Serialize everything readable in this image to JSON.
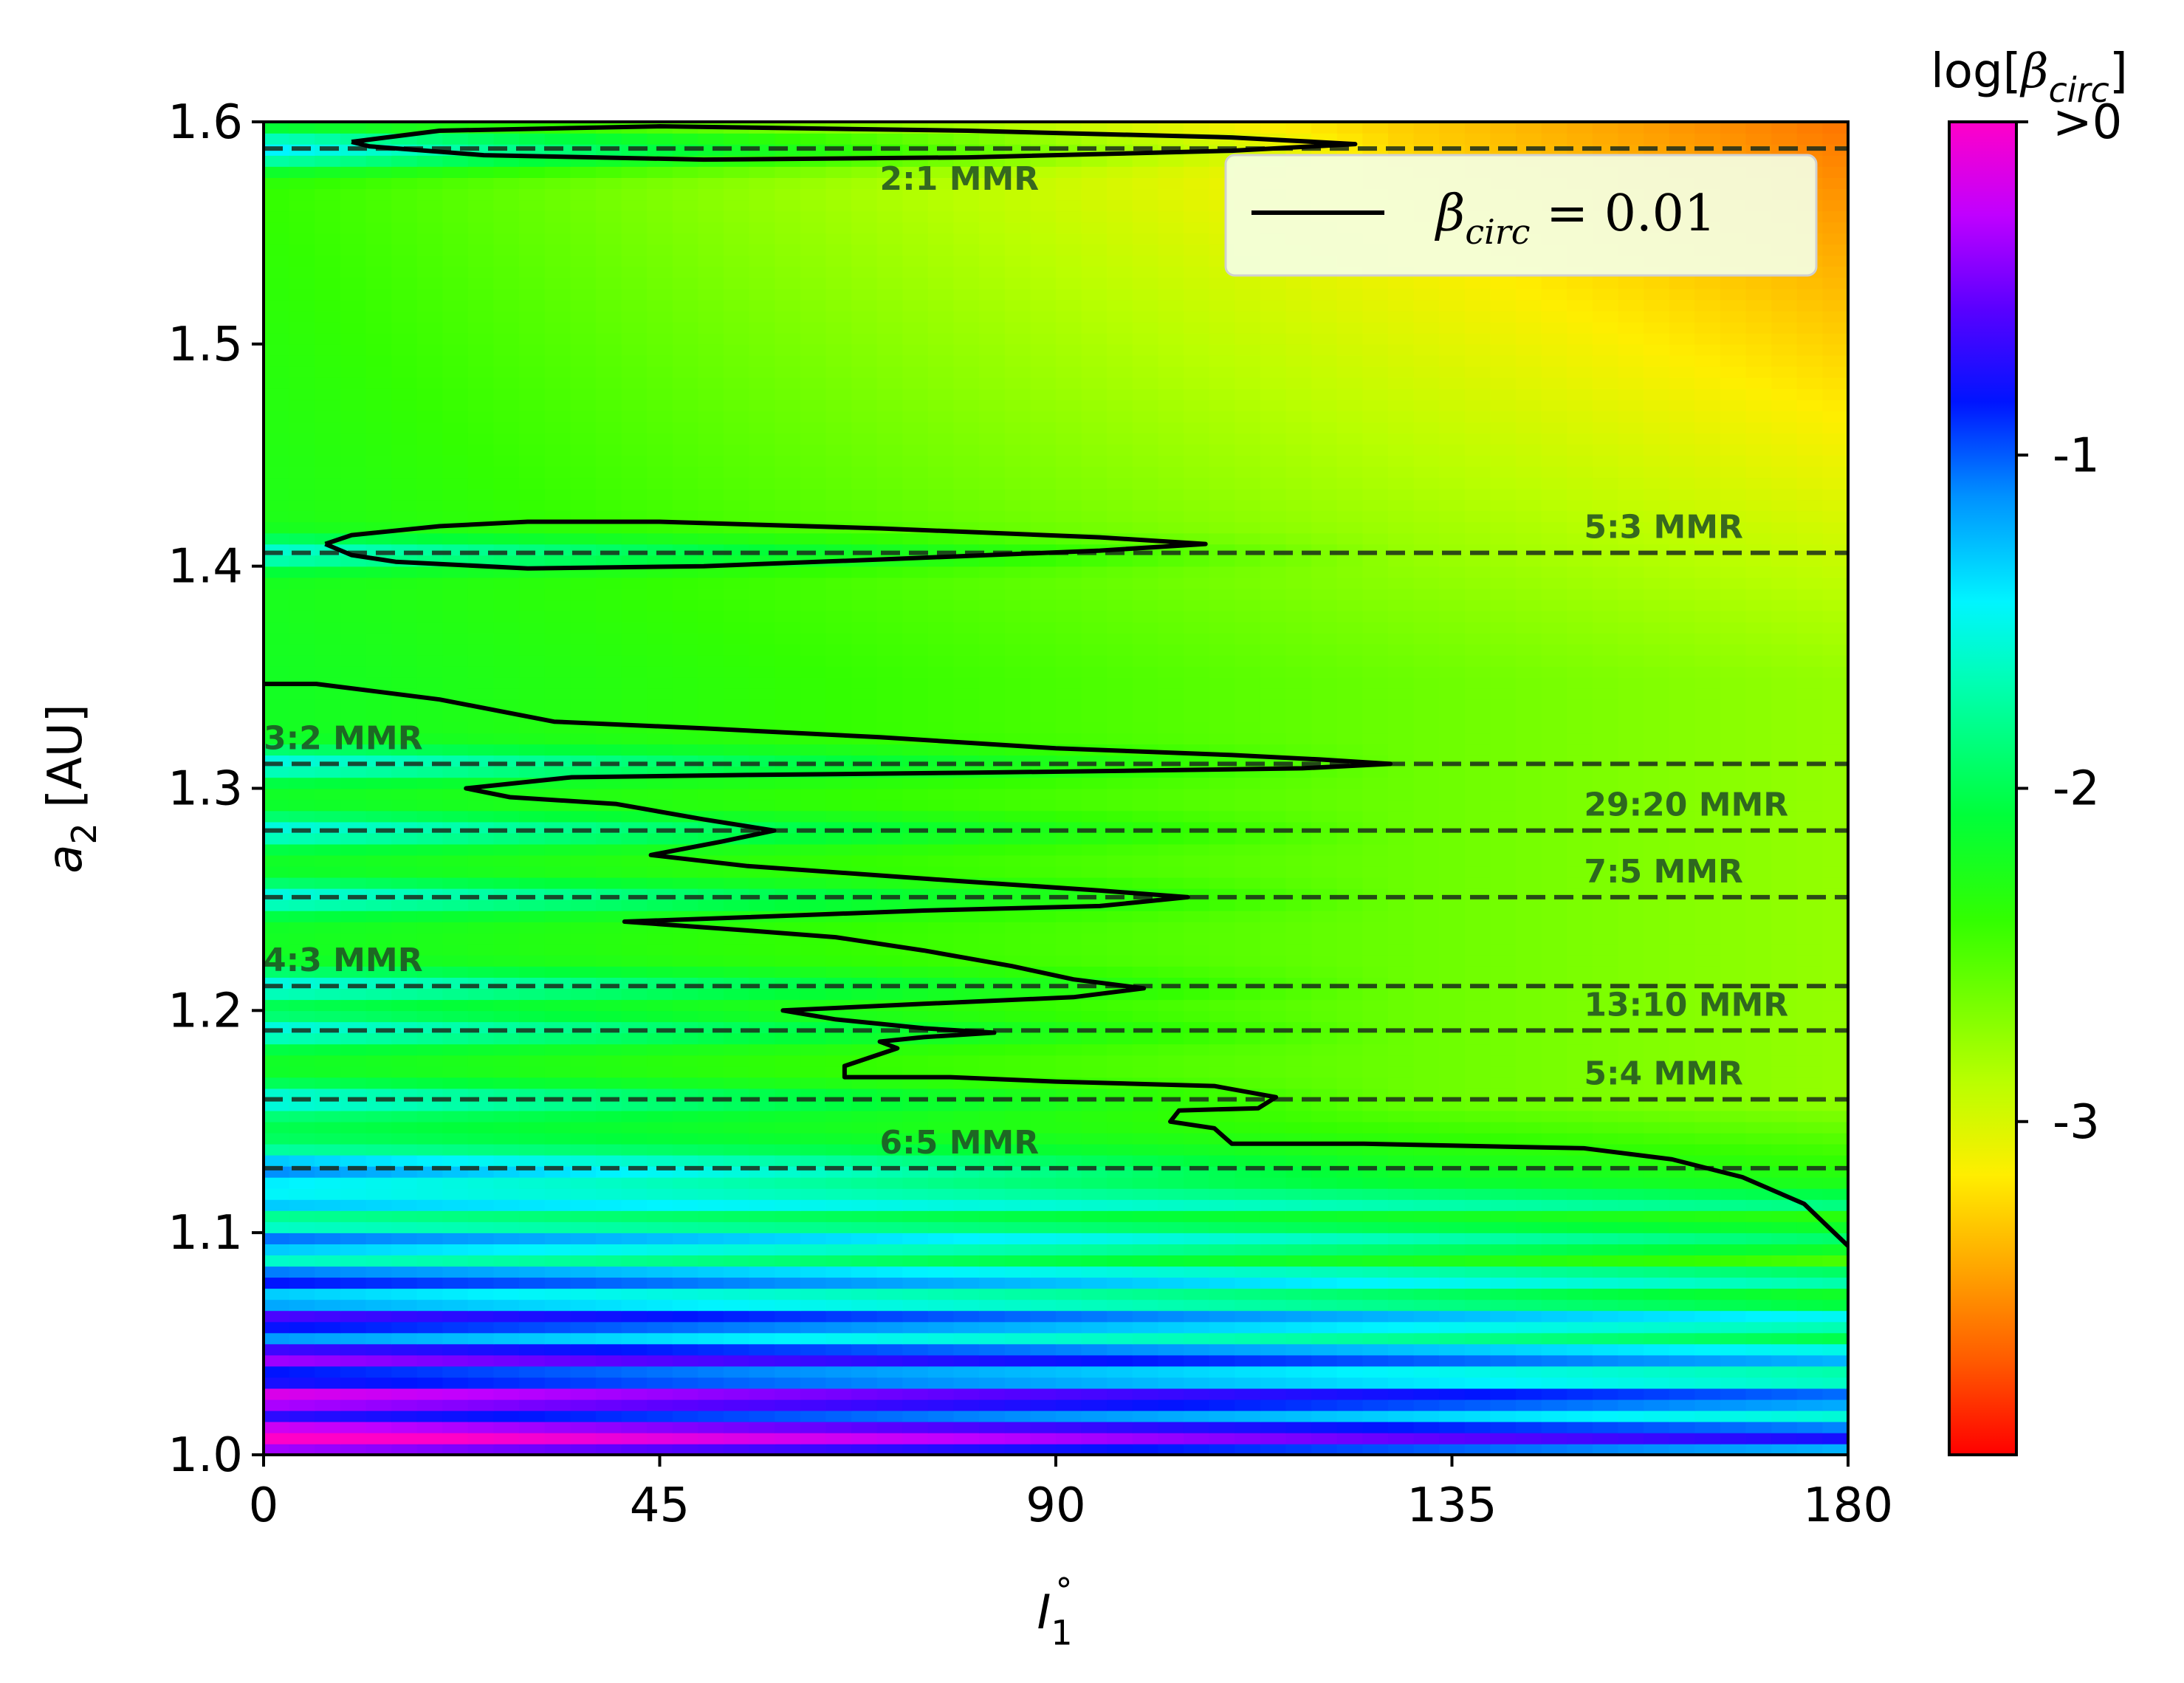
{
  "chart_data": {
    "type": "heatmap",
    "xlabel": "I",
    "xlabel_sub": "1",
    "xlabel_sup": "∘",
    "ylabel": "a",
    "ylabel_sub": "2",
    "ylabel_unit": " [AU]",
    "xlim": [
      0,
      180
    ],
    "ylim": [
      1.0,
      1.6
    ],
    "xticks": [
      0,
      45,
      90,
      135,
      180
    ],
    "yticks": [
      "1.0",
      "1.1",
      "1.2",
      "1.3",
      "1.4",
      "1.5",
      "1.6"
    ],
    "colormap": "gist_rainbow (red -> yellow -> green -> cyan -> blue -> magenta)",
    "colorbar": {
      "label_prefix": "log[",
      "label_symbol": "β",
      "label_sub": "circ",
      "label_suffix": "]",
      "range": [
        -4,
        0
      ],
      "ticks": [
        {
          "value": 0,
          "label": ">0"
        },
        {
          "value": -1,
          "label": "-1"
        },
        {
          "value": -2,
          "label": "-2"
        },
        {
          "value": -3,
          "label": "-3"
        }
      ]
    },
    "legend": {
      "placement": "top-right",
      "entries": [
        {
          "symbol": "β",
          "sub": "circ",
          "text": " = 0.01",
          "style": "solid black line"
        }
      ]
    },
    "resonances": [
      {
        "label": "2:1 MMR",
        "a": 1.588
      },
      {
        "label": "5:3 MMR",
        "a": 1.406
      },
      {
        "label": "3:2 MMR",
        "a": 1.311
      },
      {
        "label": "29:20 MMR",
        "a": 1.281
      },
      {
        "label": "7:5 MMR",
        "a": 1.251
      },
      {
        "label": "4:3 MMR",
        "a": 1.211
      },
      {
        "label": "13:10 MMR",
        "a": 1.191
      },
      {
        "label": "5:4 MMR",
        "a": 1.16
      },
      {
        "label": "6:5 MMR",
        "a": 1.129
      }
    ],
    "contour_level": 0.01,
    "contours": [
      {
        "name": "contour-2to1",
        "points": [
          [
            10,
            1.591
          ],
          [
            20,
            1.596
          ],
          [
            45,
            1.598
          ],
          [
            80,
            1.596
          ],
          [
            110,
            1.593
          ],
          [
            124,
            1.59
          ],
          [
            110,
            1.587
          ],
          [
            80,
            1.584
          ],
          [
            50,
            1.583
          ],
          [
            25,
            1.585
          ],
          [
            12,
            1.589
          ],
          [
            10,
            1.591
          ]
        ]
      },
      {
        "name": "contour-5to3",
        "points": [
          [
            7,
            1.41
          ],
          [
            10,
            1.414
          ],
          [
            20,
            1.418
          ],
          [
            30,
            1.42
          ],
          [
            45,
            1.42
          ],
          [
            70,
            1.417
          ],
          [
            95,
            1.413
          ],
          [
            107,
            1.41
          ],
          [
            95,
            1.407
          ],
          [
            70,
            1.403
          ],
          [
            50,
            1.4
          ],
          [
            30,
            1.399
          ],
          [
            15,
            1.402
          ],
          [
            10,
            1.405
          ],
          [
            7,
            1.41
          ]
        ]
      },
      {
        "name": "contour-main",
        "points": [
          [
            0,
            1.347
          ],
          [
            6,
            1.347
          ],
          [
            10,
            1.345
          ],
          [
            20,
            1.34
          ],
          [
            33,
            1.33
          ],
          [
            50,
            1.327
          ],
          [
            70,
            1.323
          ],
          [
            90,
            1.318
          ],
          [
            110,
            1.315
          ],
          [
            120,
            1.313
          ],
          [
            128,
            1.311
          ],
          [
            118,
            1.309
          ],
          [
            100,
            1.308
          ],
          [
            80,
            1.307
          ],
          [
            55,
            1.306
          ],
          [
            35,
            1.305
          ],
          [
            23,
            1.3
          ],
          [
            28,
            1.296
          ],
          [
            40,
            1.293
          ],
          [
            50,
            1.286
          ],
          [
            58,
            1.281
          ],
          [
            52,
            1.276
          ],
          [
            44,
            1.27
          ],
          [
            55,
            1.265
          ],
          [
            80,
            1.258
          ],
          [
            95,
            1.254
          ],
          [
            105,
            1.251
          ],
          [
            95,
            1.247
          ],
          [
            75,
            1.245
          ],
          [
            55,
            1.242
          ],
          [
            41,
            1.24
          ],
          [
            55,
            1.236
          ],
          [
            65,
            1.233
          ],
          [
            75,
            1.227
          ],
          [
            85,
            1.22
          ],
          [
            92,
            1.214
          ],
          [
            100,
            1.21
          ],
          [
            92,
            1.206
          ],
          [
            75,
            1.203
          ],
          [
            59,
            1.2
          ],
          [
            65,
            1.196
          ],
          [
            75,
            1.192
          ],
          [
            83,
            1.19
          ],
          [
            75,
            1.188
          ],
          [
            70,
            1.186
          ],
          [
            72,
            1.183
          ],
          [
            66,
            1.175
          ],
          [
            66,
            1.17
          ],
          [
            78,
            1.17
          ],
          [
            90,
            1.168
          ],
          [
            108,
            1.166
          ],
          [
            115,
            1.161
          ],
          [
            113,
            1.156
          ],
          [
            104,
            1.155
          ],
          [
            103,
            1.15
          ],
          [
            108,
            1.147
          ],
          [
            110,
            1.14
          ],
          [
            125,
            1.14
          ],
          [
            150,
            1.138
          ],
          [
            160,
            1.133
          ],
          [
            168,
            1.125
          ],
          [
            175,
            1.113
          ],
          [
            180,
            1.094
          ]
        ]
      }
    ]
  }
}
